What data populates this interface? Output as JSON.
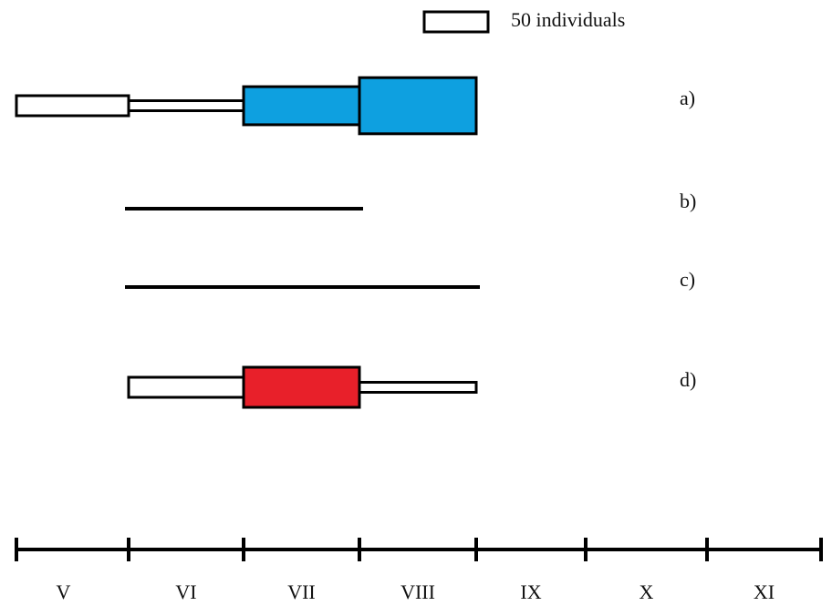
{
  "chart_data": {
    "type": "kite",
    "categories": [
      "V",
      "VI",
      "VII",
      "VIII",
      "IX",
      "X",
      "XI"
    ],
    "legend": {
      "label": "50 individuals",
      "value": 50
    },
    "series": [
      {
        "name": "a)",
        "style": "kite",
        "values": [
          50,
          25,
          95,
          140,
          null,
          null,
          null
        ],
        "colors": [
          "#ffffff",
          "#ffffff",
          "#0ea0e0",
          "#0ea0e0",
          null,
          null,
          null
        ]
      },
      {
        "name": "b)",
        "style": "line",
        "present": [
          false,
          true,
          true,
          false,
          false,
          false,
          false
        ]
      },
      {
        "name": "c)",
        "style": "line",
        "present": [
          false,
          true,
          true,
          true,
          false,
          false,
          false
        ]
      },
      {
        "name": "d)",
        "style": "kite",
        "values": [
          null,
          50,
          100,
          25,
          null,
          null,
          null
        ],
        "colors": [
          null,
          "#ffffff",
          "#e8202a",
          "#ffffff",
          null,
          null,
          null
        ]
      }
    ]
  }
}
